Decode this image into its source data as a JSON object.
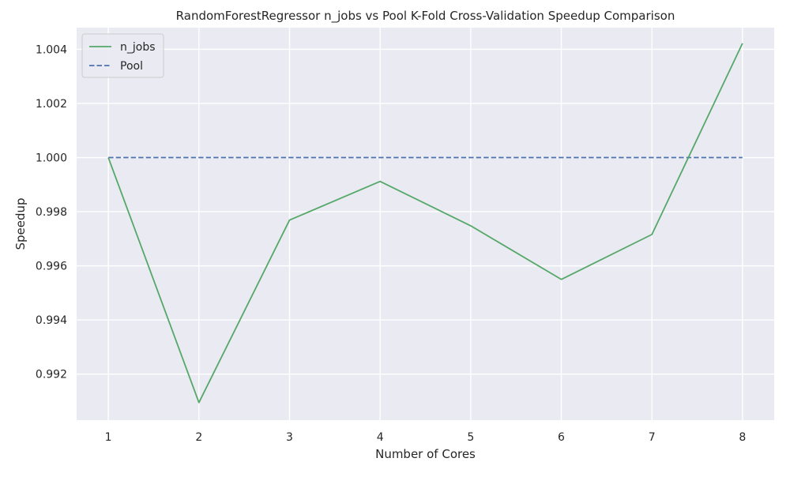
{
  "chart_data": {
    "type": "line",
    "title": "RandomForestRegressor n_jobs vs Pool K-Fold Cross-Validation Speedup Comparison",
    "xlabel": "Number of Cores",
    "ylabel": "Speedup",
    "x": [
      1,
      2,
      3,
      4,
      5,
      6,
      7,
      8
    ],
    "xticks": [
      "1",
      "2",
      "3",
      "4",
      "5",
      "6",
      "7",
      "8"
    ],
    "xlim": [
      0.65,
      8.35
    ],
    "ylim": [
      0.9903,
      1.0048
    ],
    "yticks": [
      "0.992",
      "0.994",
      "0.996",
      "0.998",
      "1.000",
      "1.002",
      "1.004"
    ],
    "grid": true,
    "legend_position": "top-left",
    "series": [
      {
        "name": "n_jobs",
        "color": "#55a868",
        "dash": "solid",
        "values": [
          1.0,
          0.99095,
          0.99769,
          0.99912,
          0.99748,
          0.9955,
          0.99716,
          1.00422
        ]
      },
      {
        "name": "Pool",
        "color": "#4c72b0",
        "dash": "dashed",
        "values": [
          1.0,
          1.0,
          1.0,
          1.0,
          1.0,
          1.0,
          1.0,
          1.0
        ]
      }
    ]
  }
}
